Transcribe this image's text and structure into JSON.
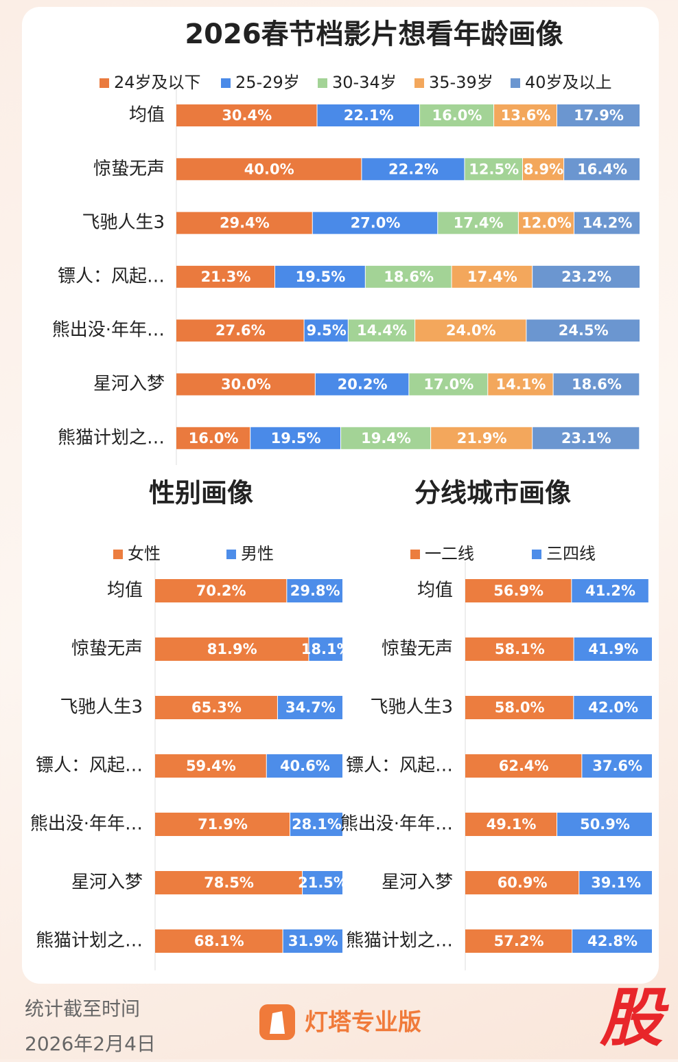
{
  "chart_data": [
    {
      "type": "bar",
      "orientation": "horizontal",
      "stacked": true,
      "title": "2026春节档影片想看年龄画像",
      "categories": [
        "均值",
        "惊蛰无声",
        "飞驰人生3",
        "镖人：风起…",
        "熊出没·年年…",
        "星河入梦",
        "熊猫计划之…"
      ],
      "xlim": [
        0,
        100
      ],
      "series": [
        {
          "name": "24岁及以下",
          "color": "#ea7a3e",
          "values": [
            30.4,
            40.0,
            29.4,
            21.3,
            27.6,
            30.0,
            16.0
          ],
          "value_labels": [
            "30.4%",
            "40.0%",
            "29.4%",
            "21.3%",
            "27.6%",
            "30.0%",
            "16.0%"
          ]
        },
        {
          "name": "25-29岁",
          "color": "#4a8ae8",
          "values": [
            22.1,
            22.2,
            27.0,
            19.5,
            9.5,
            20.2,
            19.5
          ],
          "value_labels": [
            "22.1%",
            "22.2%",
            "27.0%",
            "19.5%",
            "9.5%",
            "20.2%",
            "19.5%"
          ]
        },
        {
          "name": "30-34岁",
          "color": "#a3d396",
          "values": [
            16.0,
            12.5,
            17.4,
            18.6,
            14.4,
            17.0,
            19.4
          ],
          "value_labels": [
            "16.0%",
            "12.5%",
            "17.4%",
            "18.6%",
            "14.4%",
            "17.0%",
            "19.4%"
          ]
        },
        {
          "name": "35-39岁",
          "color": "#f3a75c",
          "values": [
            13.6,
            8.9,
            12.0,
            17.4,
            24.0,
            14.1,
            21.9
          ],
          "value_labels": [
            "13.6%",
            "8.9%",
            "12.0%",
            "17.4%",
            "24.0%",
            "14.1%",
            "21.9%"
          ]
        },
        {
          "name": "40岁及以上",
          "color": "#6b96d0",
          "values": [
            17.9,
            16.4,
            14.2,
            23.2,
            24.5,
            18.6,
            23.1
          ],
          "value_labels": [
            "17.9%",
            "16.4%",
            "14.2%",
            "23.2%",
            "24.5%",
            "18.6%",
            "23.1%"
          ]
        }
      ]
    },
    {
      "type": "bar",
      "orientation": "horizontal",
      "stacked": true,
      "title": "性别画像",
      "categories": [
        "均值",
        "惊蛰无声",
        "飞驰人生3",
        "镖人：风起…",
        "熊出没·年年…",
        "星河入梦",
        "熊猫计划之…"
      ],
      "xlim": [
        0,
        100
      ],
      "series": [
        {
          "name": "女性",
          "color": "#ec7d3f",
          "values": [
            70.2,
            81.9,
            65.3,
            59.4,
            71.9,
            78.5,
            68.1
          ],
          "value_labels": [
            "70.2%",
            "81.9%",
            "65.3%",
            "59.4%",
            "71.9%",
            "78.5%",
            "68.1%"
          ]
        },
        {
          "name": "男性",
          "color": "#4d8de9",
          "values": [
            29.8,
            18.1,
            34.7,
            40.6,
            28.1,
            21.5,
            31.9
          ],
          "value_labels": [
            "29.8%",
            "18.1%",
            "34.7%",
            "40.6%",
            "28.1%",
            "21.5%",
            "31.9%"
          ]
        }
      ]
    },
    {
      "type": "bar",
      "orientation": "horizontal",
      "stacked": true,
      "title": "分线城市画像",
      "categories": [
        "均值",
        "惊蛰无声",
        "飞驰人生3",
        "镖人：风起…",
        "熊出没·年年…",
        "星河入梦",
        "熊猫计划之…"
      ],
      "xlim": [
        0,
        100
      ],
      "series": [
        {
          "name": "一二线",
          "color": "#ec7d3f",
          "values": [
            56.9,
            58.1,
            58.0,
            62.4,
            49.1,
            60.9,
            57.2
          ],
          "value_labels": [
            "56.9%",
            "58.1%",
            "58.0%",
            "62.4%",
            "49.1%",
            "60.9%",
            "57.2%"
          ]
        },
        {
          "name": "三四线",
          "color": "#4d8de9",
          "values": [
            41.2,
            41.9,
            42.0,
            37.6,
            50.9,
            39.1,
            42.8
          ],
          "value_labels": [
            "41.2%",
            "41.9%",
            "42.0%",
            "37.6%",
            "50.9%",
            "39.1%",
            "42.8%"
          ]
        }
      ]
    }
  ],
  "footer": {
    "note": "统计截至时间",
    "date": "2026年2月4日",
    "brand": "灯塔专业版",
    "watermark": "股"
  }
}
